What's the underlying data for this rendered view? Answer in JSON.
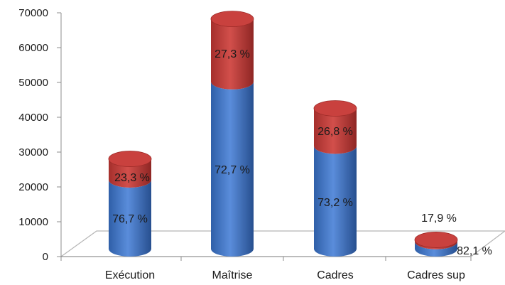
{
  "chart_data": {
    "type": "bar",
    "stacked": true,
    "three_d": true,
    "categories": [
      "Exécution",
      "Maîtrise",
      "Cadres",
      "Cadres sup"
    ],
    "series": [
      {
        "values": [
          19800,
          48000,
          29500,
          2100
        ],
        "color": "#4a7cc9"
      },
      {
        "values": [
          6000,
          18000,
          10800,
          460
        ],
        "color": "#c9413e"
      }
    ],
    "data_labels": [
      [
        "76,7 %",
        "72,7 %",
        "73,2 %",
        "82,1 %"
      ],
      [
        "23,3 %",
        "27,3 %",
        "26,8 %",
        "17,9 %"
      ]
    ],
    "ylim": [
      0,
      70000
    ],
    "yticks": [
      "0",
      "10000",
      "20000",
      "30000",
      "40000",
      "50000",
      "60000",
      "70000"
    ],
    "legend": "none",
    "grid": false
  }
}
